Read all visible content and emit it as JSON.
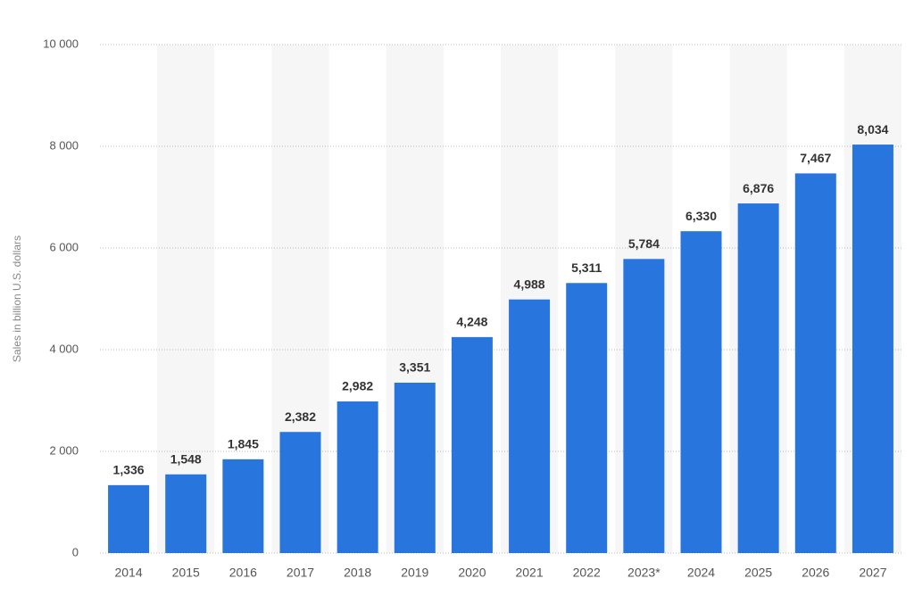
{
  "chart_data": {
    "type": "bar",
    "y_label": "Sales in billion U.S. dollars",
    "categories": [
      "2014",
      "2015",
      "2016",
      "2017",
      "2018",
      "2019",
      "2020",
      "2021",
      "2022",
      "2023*",
      "2024",
      "2025",
      "2026",
      "2027"
    ],
    "values": [
      1336,
      1548,
      1845,
      2382,
      2982,
      3351,
      4248,
      4988,
      5311,
      5784,
      6330,
      6876,
      7467,
      8034
    ],
    "value_labels": [
      "1,336",
      "1,548",
      "1,845",
      "2,382",
      "2,982",
      "3,351",
      "4,248",
      "4,988",
      "5,311",
      "5,784",
      "6,330",
      "6,876",
      "7,467",
      "8,034"
    ],
    "color": "#2876dd",
    "ylim": [
      0,
      10000
    ],
    "yticks": [
      0,
      {
        "value": 2000,
        "label": "2 000"
      },
      {
        "value": 4000,
        "label": "4 000"
      },
      {
        "value": 6000,
        "label": "6 000"
      },
      {
        "value": 8000,
        "label": "8 000"
      },
      {
        "value": 10000,
        "label": "10 000"
      }
    ],
    "grid": true
  }
}
